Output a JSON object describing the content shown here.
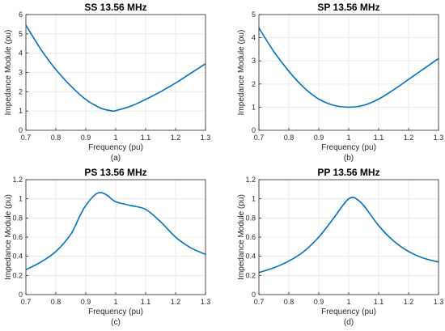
{
  "chart_data": [
    {
      "type": "line",
      "title": "SS 13.56 MHz",
      "xlabel": "Frequency (pu)",
      "ylabel": "Impedance Module (pu)",
      "sublabel": "(a)",
      "xlim": [
        0.7,
        1.3
      ],
      "ylim": [
        0,
        6
      ],
      "xticks": [
        "0.7",
        "0.8",
        "0.9",
        "1",
        "1.1",
        "1.2",
        "1.3"
      ],
      "yticks": [
        "0",
        "1",
        "2",
        "3",
        "4",
        "5",
        "6"
      ],
      "grid": true,
      "line_color": "#0072BD",
      "x": [
        0.7,
        0.75,
        0.8,
        0.85,
        0.9,
        0.95,
        0.99,
        1.0,
        1.05,
        1.1,
        1.15,
        1.2,
        1.25,
        1.3
      ],
      "y": [
        5.45,
        4.2,
        3.15,
        2.3,
        1.6,
        1.15,
        1.0,
        1.02,
        1.25,
        1.6,
        2.0,
        2.45,
        2.95,
        3.45
      ]
    },
    {
      "type": "line",
      "title": "SP 13.56 MHz",
      "xlabel": "Frequency (pu)",
      "ylabel": "Impedance Module (pu)",
      "sublabel": "(b)",
      "xlim": [
        0.7,
        1.3
      ],
      "ylim": [
        0,
        5
      ],
      "xticks": [
        "0.7",
        "0.8",
        "0.9",
        "1",
        "1.1",
        "1.2",
        "1.3"
      ],
      "yticks": [
        "0",
        "1",
        "2",
        "3",
        "4",
        "5"
      ],
      "grid": true,
      "line_color": "#0072BD",
      "x": [
        0.7,
        0.75,
        0.8,
        0.85,
        0.9,
        0.95,
        1.0,
        1.05,
        1.1,
        1.15,
        1.2,
        1.25,
        1.3
      ],
      "y": [
        4.42,
        3.4,
        2.55,
        1.85,
        1.35,
        1.08,
        1.0,
        1.08,
        1.35,
        1.75,
        2.2,
        2.65,
        3.1
      ]
    },
    {
      "type": "line",
      "title": "PS 13.56 MHz",
      "xlabel": "Frequency (pu)",
      "ylabel": "Impedance Module (pu)",
      "sublabel": "(c)",
      "xlim": [
        0.7,
        1.3
      ],
      "ylim": [
        0,
        1.2
      ],
      "xticks": [
        "0.7",
        "0.8",
        "0.9",
        "1",
        "1.1",
        "1.2",
        "1.3"
      ],
      "yticks": [
        "0",
        "0.2",
        "0.4",
        "0.6",
        "0.8",
        "1",
        "1.2"
      ],
      "grid": true,
      "line_color": "#0072BD",
      "x": [
        0.7,
        0.75,
        0.8,
        0.85,
        0.88,
        0.9,
        0.93,
        0.95,
        0.97,
        1.0,
        1.05,
        1.1,
        1.15,
        1.2,
        1.25,
        1.3
      ],
      "y": [
        0.26,
        0.34,
        0.45,
        0.63,
        0.82,
        0.93,
        1.04,
        1.065,
        1.04,
        0.97,
        0.93,
        0.89,
        0.76,
        0.6,
        0.49,
        0.42
      ]
    },
    {
      "type": "line",
      "title": "PP 13.56 MHz",
      "xlabel": "Frequency (pu)",
      "ylabel": "Impedance Module (pu)",
      "sublabel": "(d)",
      "xlim": [
        0.7,
        1.3
      ],
      "ylim": [
        0,
        1.2
      ],
      "xticks": [
        "0.7",
        "0.8",
        "0.9",
        "1",
        "1.1",
        "1.2",
        "1.3"
      ],
      "yticks": [
        "0",
        "0.2",
        "0.4",
        "0.6",
        "0.8",
        "1",
        "1.2"
      ],
      "grid": true,
      "line_color": "#0072BD",
      "x": [
        0.7,
        0.75,
        0.8,
        0.85,
        0.9,
        0.95,
        0.98,
        1.0,
        1.02,
        1.05,
        1.1,
        1.15,
        1.2,
        1.25,
        1.3
      ],
      "y": [
        0.23,
        0.28,
        0.35,
        0.45,
        0.6,
        0.8,
        0.93,
        1.0,
        1.01,
        0.93,
        0.72,
        0.56,
        0.45,
        0.38,
        0.34
      ]
    }
  ]
}
